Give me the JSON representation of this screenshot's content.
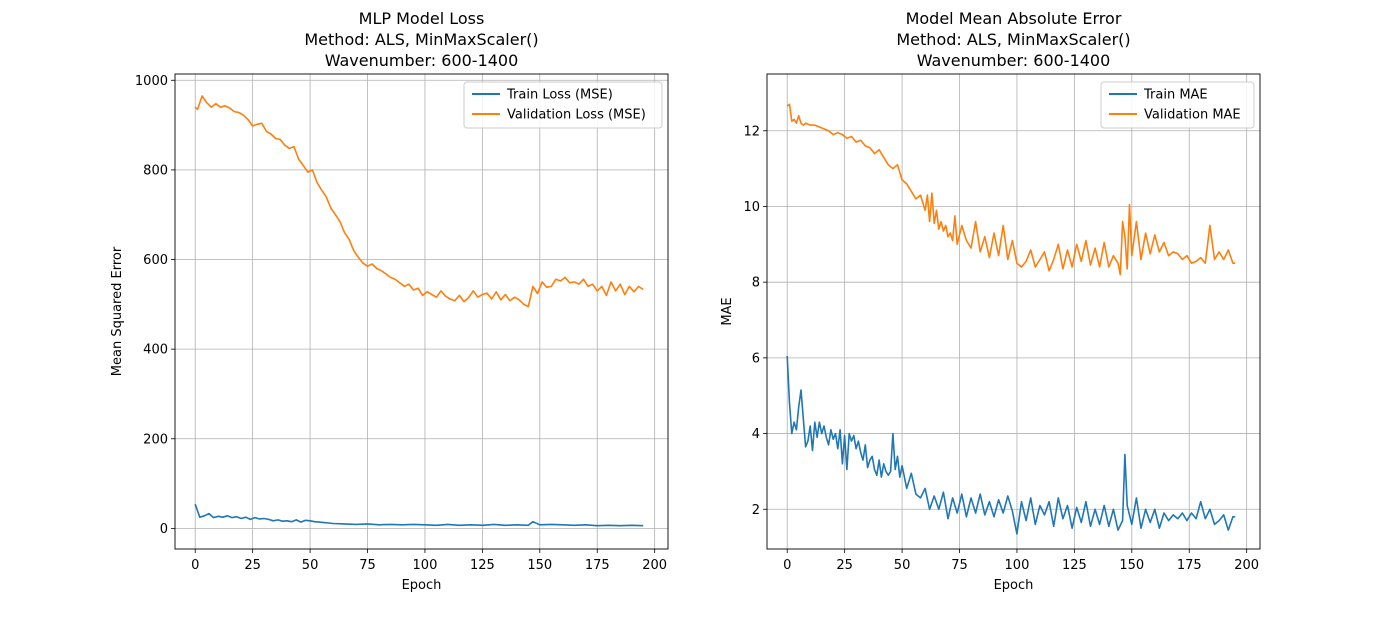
{
  "chart_data": [
    {
      "type": "line",
      "title": [
        "MLP Model Loss",
        "Method: ALS, MinMaxScaler()",
        "Wavenumber: 600-1400"
      ],
      "xlabel": "Epoch",
      "ylabel": "Mean Squared Error",
      "xlim": [
        -8.8,
        205.8
      ],
      "ylim": [
        -46,
        1014
      ],
      "xticks": [
        0,
        25,
        50,
        75,
        100,
        125,
        150,
        175,
        200
      ],
      "yticks": [
        0,
        200,
        400,
        600,
        800,
        1000
      ],
      "grid": true,
      "legend": "top-right",
      "series": [
        {
          "name": "Train Loss (MSE)",
          "color": "#1f77b4",
          "x": [
            0,
            2,
            4,
            6,
            8,
            10,
            12,
            14,
            16,
            18,
            20,
            22,
            24,
            26,
            28,
            30,
            32,
            34,
            36,
            38,
            40,
            42,
            44,
            46,
            48,
            50,
            52,
            54,
            56,
            58,
            60,
            65,
            70,
            75,
            80,
            85,
            90,
            95,
            100,
            105,
            110,
            115,
            120,
            125,
            130,
            135,
            140,
            145,
            147,
            150,
            155,
            160,
            165,
            170,
            175,
            180,
            185,
            190,
            195
          ],
          "values": [
            54,
            25,
            28,
            33,
            24,
            27,
            25,
            28,
            24,
            26,
            22,
            25,
            20,
            24,
            21,
            22,
            20,
            17,
            19,
            16,
            17,
            15,
            19,
            14,
            18,
            17,
            15,
            14,
            13,
            12,
            11,
            10,
            9,
            10,
            8,
            9,
            8,
            9,
            8,
            7,
            9,
            7,
            8,
            7,
            9,
            7,
            8,
            7,
            15,
            8,
            9,
            8,
            7,
            8,
            6,
            7,
            6,
            7,
            6
          ]
        },
        {
          "name": "Validation Loss (MSE)",
          "color": "#ff7f0e",
          "x": [
            0,
            1,
            3,
            5,
            7,
            9,
            11,
            13,
            15,
            17,
            19,
            21,
            23,
            25,
            27,
            29,
            31,
            33,
            35,
            37,
            39,
            41,
            43,
            45,
            47,
            49,
            51,
            53,
            55,
            57,
            59,
            61,
            63,
            65,
            67,
            69,
            71,
            73,
            75,
            77,
            79,
            81,
            83,
            85,
            87,
            89,
            91,
            93,
            95,
            97,
            99,
            101,
            103,
            105,
            107,
            109,
            111,
            113,
            115,
            117,
            119,
            121,
            123,
            125,
            127,
            129,
            131,
            133,
            135,
            137,
            139,
            141,
            143,
            145,
            147,
            149,
            151,
            153,
            155,
            157,
            159,
            161,
            163,
            165,
            167,
            169,
            171,
            173,
            175,
            177,
            179,
            181,
            183,
            185,
            187,
            189,
            191,
            193,
            195
          ],
          "values": [
            940,
            935,
            965,
            950,
            940,
            948,
            940,
            943,
            938,
            930,
            928,
            922,
            912,
            898,
            902,
            904,
            886,
            880,
            870,
            868,
            855,
            848,
            852,
            824,
            810,
            795,
            800,
            772,
            755,
            740,
            715,
            700,
            685,
            660,
            645,
            620,
            605,
            592,
            585,
            590,
            580,
            575,
            568,
            560,
            556,
            548,
            540,
            545,
            532,
            536,
            520,
            528,
            522,
            516,
            530,
            518,
            512,
            508,
            520,
            506,
            515,
            530,
            516,
            522,
            525,
            512,
            528,
            510,
            522,
            508,
            516,
            510,
            500,
            495,
            540,
            524,
            550,
            538,
            540,
            556,
            552,
            560,
            548,
            550,
            545,
            556,
            540,
            545,
            530,
            540,
            520,
            550,
            530,
            545,
            522,
            540,
            528,
            540,
            533
          ]
        }
      ]
    },
    {
      "type": "line",
      "title": [
        "Model Mean Absolute Error",
        "Method: ALS, MinMaxScaler()",
        "Wavenumber: 600-1400"
      ],
      "xlabel": "Epoch",
      "ylabel": "MAE",
      "xlim": [
        -8.8,
        205.8
      ],
      "ylim": [
        0.95,
        13.5
      ],
      "xticks": [
        0,
        25,
        50,
        75,
        100,
        125,
        150,
        175,
        200
      ],
      "yticks": [
        2,
        4,
        6,
        8,
        10,
        12
      ],
      "grid": true,
      "legend": "top-right",
      "series": [
        {
          "name": "Train MAE",
          "color": "#1f77b4",
          "x": [
            0,
            1,
            2,
            3,
            4,
            5,
            6,
            7,
            8,
            9,
            10,
            11,
            12,
            13,
            14,
            15,
            16,
            17,
            18,
            19,
            20,
            21,
            22,
            23,
            24,
            25,
            26,
            27,
            28,
            29,
            30,
            31,
            32,
            33,
            34,
            35,
            36,
            37,
            38,
            39,
            40,
            41,
            42,
            43,
            44,
            45,
            46,
            47,
            48,
            49,
            50,
            52,
            54,
            56,
            58,
            60,
            62,
            64,
            66,
            68,
            70,
            72,
            74,
            76,
            78,
            80,
            82,
            84,
            86,
            88,
            90,
            92,
            94,
            96,
            98,
            100,
            102,
            104,
            106,
            108,
            110,
            112,
            114,
            116,
            118,
            120,
            122,
            124,
            126,
            128,
            130,
            132,
            134,
            136,
            138,
            140,
            142,
            144,
            146,
            147,
            148,
            150,
            152,
            154,
            156,
            158,
            160,
            162,
            164,
            166,
            168,
            170,
            172,
            174,
            176,
            178,
            180,
            182,
            184,
            186,
            188,
            190,
            192,
            194,
            195
          ],
          "values": [
            6.05,
            4.8,
            4.0,
            4.3,
            4.1,
            4.7,
            5.15,
            4.4,
            3.65,
            3.8,
            4.2,
            3.55,
            4.3,
            3.9,
            4.3,
            4.0,
            4.2,
            3.9,
            3.7,
            4.1,
            3.85,
            4.0,
            3.6,
            4.1,
            3.2,
            3.95,
            3.05,
            4.0,
            3.8,
            3.95,
            3.6,
            3.8,
            3.5,
            3.3,
            3.7,
            3.1,
            3.3,
            3.4,
            3.05,
            2.9,
            3.3,
            2.85,
            3.2,
            3.0,
            2.9,
            3.0,
            4.0,
            3.05,
            3.4,
            2.85,
            3.15,
            2.55,
            2.95,
            2.4,
            2.3,
            2.55,
            2.0,
            2.35,
            2.0,
            2.45,
            1.75,
            2.3,
            1.9,
            2.4,
            1.8,
            2.3,
            1.9,
            2.4,
            1.85,
            2.2,
            1.8,
            2.25,
            1.9,
            2.35,
            1.95,
            1.35,
            2.2,
            1.7,
            2.3,
            1.6,
            2.1,
            1.85,
            2.2,
            1.55,
            2.3,
            1.75,
            2.1,
            1.5,
            2.05,
            1.65,
            2.2,
            1.55,
            2.0,
            1.6,
            2.1,
            1.55,
            2.0,
            1.45,
            1.7,
            3.45,
            2.1,
            1.6,
            2.3,
            1.5,
            2.0,
            1.65,
            2.0,
            1.5,
            1.9,
            1.7,
            1.85,
            1.75,
            1.9,
            1.7,
            1.9,
            1.75,
            2.2,
            1.75,
            2.0,
            1.6,
            1.7,
            1.85,
            1.45,
            1.8,
            1.8
          ]
        },
        {
          "name": "Validation MAE",
          "color": "#ff7f0e",
          "x": [
            0,
            1,
            2,
            3,
            4,
            5,
            6,
            7,
            8,
            10,
            12,
            14,
            16,
            18,
            20,
            22,
            24,
            26,
            28,
            30,
            32,
            34,
            36,
            38,
            40,
            42,
            44,
            46,
            48,
            50,
            52,
            54,
            56,
            58,
            60,
            61,
            62,
            63,
            64,
            65,
            66,
            67,
            68,
            69,
            70,
            71,
            72,
            73,
            74,
            75,
            76,
            78,
            80,
            82,
            84,
            86,
            88,
            90,
            92,
            94,
            96,
            98,
            100,
            102,
            104,
            106,
            108,
            110,
            112,
            114,
            116,
            118,
            120,
            122,
            124,
            126,
            128,
            130,
            132,
            134,
            136,
            138,
            140,
            142,
            144,
            145,
            146,
            147,
            148,
            149,
            150,
            152,
            154,
            156,
            158,
            160,
            162,
            164,
            166,
            168,
            170,
            172,
            174,
            176,
            178,
            180,
            182,
            184,
            186,
            188,
            190,
            192,
            194,
            195
          ],
          "values": [
            12.65,
            12.7,
            12.25,
            12.3,
            12.2,
            12.4,
            12.2,
            12.15,
            12.2,
            12.15,
            12.15,
            12.1,
            12.05,
            12.0,
            11.9,
            11.95,
            11.9,
            11.8,
            11.85,
            11.7,
            11.75,
            11.6,
            11.55,
            11.4,
            11.5,
            11.3,
            11.1,
            11.0,
            11.1,
            10.7,
            10.6,
            10.4,
            10.2,
            10.3,
            9.9,
            10.3,
            9.6,
            10.35,
            9.55,
            9.9,
            9.4,
            9.6,
            9.35,
            9.5,
            9.2,
            9.3,
            9.1,
            9.75,
            9.0,
            9.25,
            9.5,
            9.1,
            8.9,
            9.6,
            8.8,
            9.2,
            8.65,
            9.3,
            8.7,
            9.5,
            8.6,
            9.1,
            8.5,
            8.4,
            8.55,
            8.85,
            8.4,
            8.6,
            8.8,
            8.3,
            8.6,
            9.0,
            8.35,
            8.85,
            8.4,
            9.0,
            8.55,
            9.1,
            8.45,
            8.9,
            8.4,
            9.05,
            8.4,
            8.7,
            8.5,
            8.2,
            9.6,
            9.2,
            8.35,
            10.05,
            8.7,
            9.6,
            8.6,
            9.3,
            8.75,
            9.25,
            8.8,
            9.05,
            8.7,
            8.8,
            8.75,
            8.6,
            8.7,
            8.5,
            8.55,
            8.65,
            8.5,
            9.5,
            8.6,
            8.8,
            8.6,
            8.85,
            8.5,
            8.5
          ]
        }
      ]
    }
  ]
}
